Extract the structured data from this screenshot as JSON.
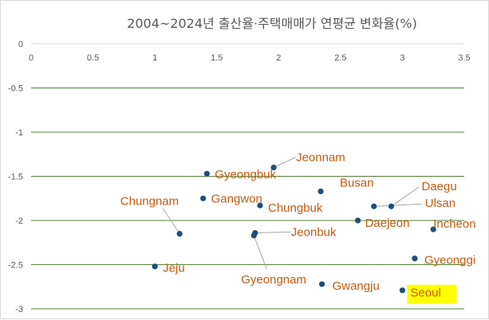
{
  "chart_data": {
    "type": "scatter",
    "title": "2004~2024년 출산율·주택매매가 연평균 변화율(%)",
    "xlabel": "",
    "ylabel": "",
    "xlim": [
      0,
      3.5
    ],
    "ylim": [
      -3,
      0
    ],
    "x_ticks": [
      "0",
      "0.5",
      "1",
      "1.5",
      "2",
      "2.5",
      "3",
      "3.5"
    ],
    "y_ticks": [
      "0",
      "-0.5",
      "-1",
      "-1.5",
      "-2",
      "-2.5",
      "-3"
    ],
    "x_axis_position": "top",
    "grid": "horizontal",
    "marker_color": "#1f4e79",
    "label_color": "#c55a11",
    "gridline_color": "#548235",
    "highlight_color": "#ffff00",
    "points": [
      {
        "label": "Jeonnam",
        "x": 1.96,
        "y": -1.4
      },
      {
        "label": "Gyeongbuk",
        "x": 1.42,
        "y": -1.47
      },
      {
        "label": "Daegu",
        "x": 2.91,
        "y": -1.84
      },
      {
        "label": "Busan",
        "x": 2.34,
        "y": -1.67
      },
      {
        "label": "Chungnam",
        "x": 1.2,
        "y": -2.15
      },
      {
        "label": "Gangwon",
        "x": 1.39,
        "y": -1.75
      },
      {
        "label": "Ulsan",
        "x": 2.77,
        "y": -1.84
      },
      {
        "label": "Chungbuk",
        "x": 1.85,
        "y": -1.83
      },
      {
        "label": "Daejeon",
        "x": 2.64,
        "y": -2.0
      },
      {
        "label": "Incheon",
        "x": 3.25,
        "y": -2.1
      },
      {
        "label": "Jeonbuk",
        "x": 1.81,
        "y": -2.14
      },
      {
        "label": "Jeju",
        "x": 1.0,
        "y": -2.52
      },
      {
        "label": "Gyeonggi",
        "x": 3.1,
        "y": -2.43
      },
      {
        "label": "Gyeongnam",
        "x": 1.8,
        "y": -2.17
      },
      {
        "label": "Gwangju",
        "x": 2.35,
        "y": -2.72
      },
      {
        "label": "Seoul",
        "x": 3.0,
        "y": -2.79,
        "highlight": true
      }
    ]
  }
}
